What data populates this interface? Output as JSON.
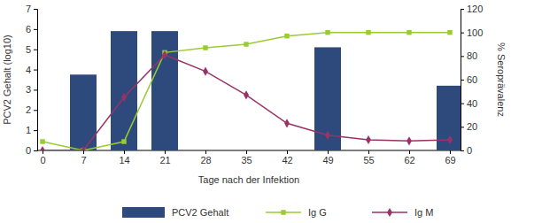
{
  "chart_data": {
    "type": "bar",
    "x_label": "Tage nach der Infektion",
    "y_label": "PCV2 Gehalt (log10)",
    "y2_label": "% Seroprävalenz",
    "categories": [
      0,
      7,
      14,
      21,
      28,
      35,
      42,
      49,
      55,
      62,
      69
    ],
    "series": [
      {
        "name": "PCV2 Gehalt",
        "type": "bar",
        "color": "#2e4a7d",
        "values": [
          null,
          3.75,
          5.9,
          5.9,
          null,
          null,
          null,
          5.1,
          null,
          null,
          3.2
        ]
      },
      {
        "name": "Ig G",
        "type": "line",
        "axis": "y2",
        "color": "#99cc33",
        "marker": "square",
        "values": [
          7.5,
          0,
          7.5,
          83,
          87,
          90,
          97,
          100,
          100,
          100,
          100
        ]
      },
      {
        "name": "Ig M",
        "type": "line",
        "axis": "y2",
        "color": "#993366",
        "marker": "diamond",
        "values": [
          0,
          0,
          45,
          81,
          67,
          47,
          23,
          13,
          9,
          8,
          9
        ]
      }
    ],
    "ylim": [
      0,
      7
    ],
    "yticks": [
      0,
      1,
      2,
      3,
      4,
      5,
      6,
      7
    ],
    "y2lim": [
      0,
      120
    ],
    "y2ticks": [
      0,
      20,
      40,
      60,
      80,
      100,
      120
    ],
    "grid": false,
    "legend": "bottom"
  }
}
